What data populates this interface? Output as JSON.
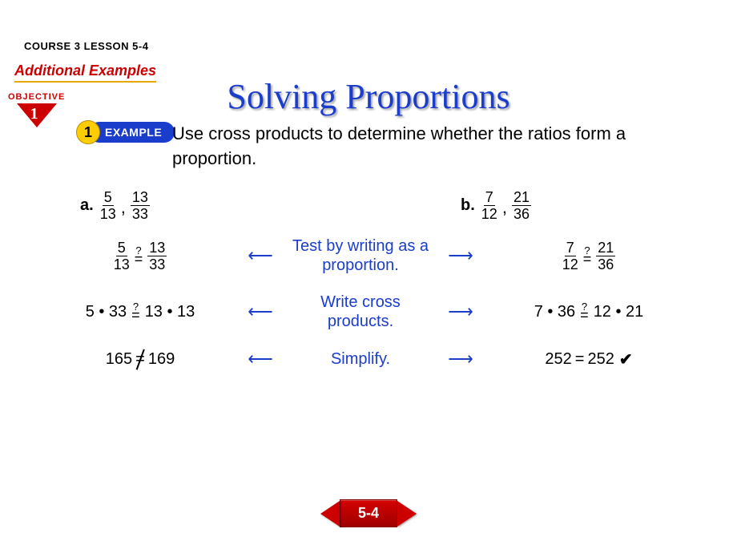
{
  "header": {
    "course_label": "COURSE 3 LESSON 5-4",
    "subtitle": "Additional Examples",
    "objective_label": "OBJECTIVE",
    "objective_num": "1",
    "example_num": "1",
    "example_label": "EXAMPLE",
    "title": "Solving Proportions",
    "instruction": "Use cross products to determine whether the ratios form a proportion."
  },
  "problems": {
    "a": {
      "label": "a.",
      "frac1_num": "5",
      "frac1_den": "13",
      "frac2_num": "13",
      "frac2_den": "33"
    },
    "b": {
      "label": "b.",
      "frac1_num": "7",
      "frac1_den": "12",
      "frac2_num": "21",
      "frac2_den": "36"
    }
  },
  "steps": {
    "s1": {
      "hint": "Test by writing as a proportion.",
      "a_f1n": "5",
      "a_f1d": "13",
      "a_f2n": "13",
      "a_f2d": "33",
      "b_f1n": "7",
      "b_f1d": "12",
      "b_f2n": "21",
      "b_f2d": "36"
    },
    "s2": {
      "hint": "Write cross products.",
      "a_left": "5 • 33",
      "a_right": "13 • 13",
      "b_left": "7 • 36",
      "b_right": "12 • 21"
    },
    "s3": {
      "hint": "Simplify.",
      "a_left": "165",
      "a_op": "=",
      "a_right": "169",
      "b_left": "252",
      "b_op": "=",
      "b_right": "252",
      "b_check": "✔"
    }
  },
  "nav": {
    "label": "5-4"
  },
  "symbols": {
    "q": "?",
    "eq": "=",
    "arrow_left": "⟵",
    "arrow_right": "⟶"
  },
  "colors": {
    "accent_blue": "#1a3dcc",
    "accent_red": "#cc0000",
    "accent_yellow": "#ffcc00"
  }
}
